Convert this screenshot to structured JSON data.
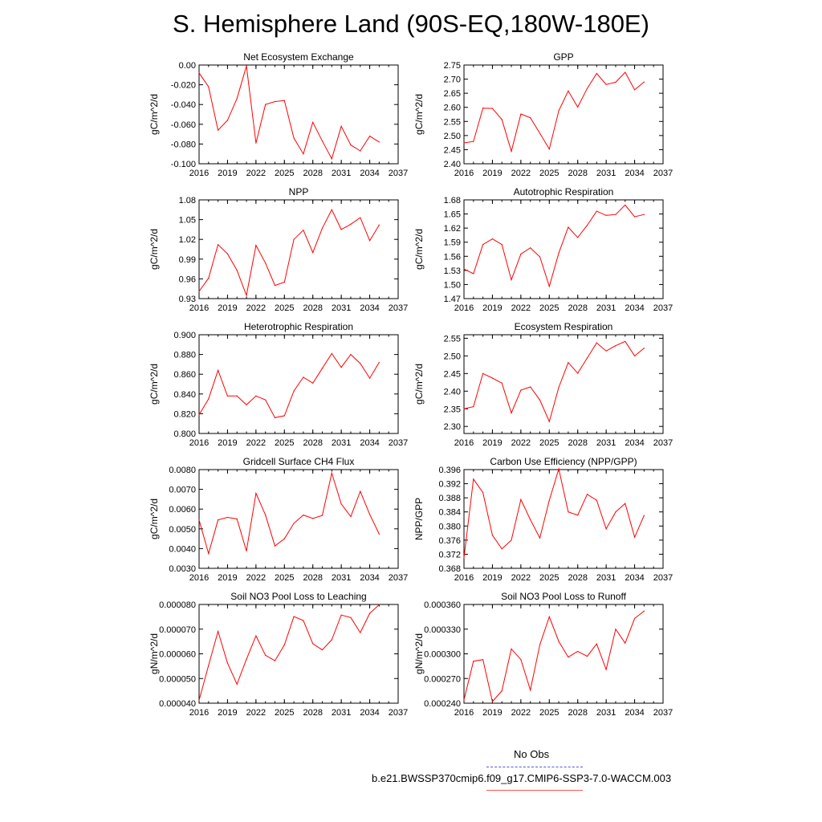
{
  "title": "S. Hemisphere Land (90S-EQ,180W-180E)",
  "colors": {
    "series": "#ff0000",
    "obs": "#5555dd",
    "model_legend": "#ff5555"
  },
  "legend": {
    "obs_label": "No Obs",
    "model_label": "b.e21.BWSSP370cmip6.f09_g17.CMIP6-SSP3-7.0-WACCM.003"
  },
  "chart_data": [
    {
      "type": "line",
      "title": "Net Ecosystem Exchange",
      "ylabel": "gC/m^2/d",
      "xlim": [
        2016,
        2037
      ],
      "xticks": [
        "2016",
        "2019",
        "2022",
        "2025",
        "2028",
        "2031",
        "2034",
        "2037"
      ],
      "ylim": [
        -0.1,
        0.0
      ],
      "yticks": [
        "-0.100",
        "-0.080",
        "-0.060",
        "-0.040",
        "-0.020",
        "0.00"
      ],
      "ytick_labels": [
        "-0.100",
        "-0.080",
        "-0.060",
        "-0.040",
        "-0.020",
        "0.00"
      ],
      "x": [
        2016,
        2017,
        2018,
        2019,
        2020,
        2021,
        2022,
        2023,
        2024,
        2025,
        2026,
        2027,
        2028,
        2029,
        2030,
        2031,
        2032,
        2033,
        2034,
        2035
      ],
      "values": [
        -0.008,
        -0.022,
        -0.066,
        -0.056,
        -0.034,
        -0.001,
        -0.079,
        -0.04,
        -0.037,
        -0.036,
        -0.074,
        -0.09,
        -0.058,
        -0.077,
        -0.095,
        -0.062,
        -0.081,
        -0.087,
        -0.072,
        -0.078
      ]
    },
    {
      "type": "line",
      "title": "GPP",
      "ylabel": "gC/m^2/d",
      "xlim": [
        2016,
        2037
      ],
      "xticks": [
        "2016",
        "2019",
        "2022",
        "2025",
        "2028",
        "2031",
        "2034",
        "2037"
      ],
      "ylim": [
        2.4,
        2.75
      ],
      "yticks": [
        "2.40",
        "2.45",
        "2.50",
        "2.55",
        "2.60",
        "2.65",
        "2.70",
        "2.75"
      ],
      "ytick_labels": [
        "2.40",
        "2.45",
        "2.50",
        "2.55",
        "2.60",
        "2.65",
        "2.70",
        "2.75"
      ],
      "x": [
        2016,
        2017,
        2018,
        2019,
        2020,
        2021,
        2022,
        2023,
        2024,
        2025,
        2026,
        2027,
        2028,
        2029,
        2030,
        2031,
        2032,
        2033,
        2034,
        2035
      ],
      "values": [
        2.474,
        2.479,
        2.597,
        2.596,
        2.557,
        2.444,
        2.576,
        2.563,
        2.508,
        2.452,
        2.588,
        2.658,
        2.601,
        2.667,
        2.72,
        2.681,
        2.689,
        2.724,
        2.662,
        2.69
      ]
    },
    {
      "type": "line",
      "title": "NPP",
      "ylabel": "gC/m^2/d",
      "xlim": [
        2016,
        2037
      ],
      "xticks": [
        "2016",
        "2019",
        "2022",
        "2025",
        "2028",
        "2031",
        "2034",
        "2037"
      ],
      "ylim": [
        0.93,
        1.08
      ],
      "yticks": [
        "0.93",
        "0.96",
        "0.99",
        "1.02",
        "1.05",
        "1.08"
      ],
      "ytick_labels": [
        "0.93",
        "0.96",
        "0.99",
        "1.02",
        "1.05",
        "1.08"
      ],
      "x": [
        2016,
        2017,
        2018,
        2019,
        2020,
        2021,
        2022,
        2023,
        2024,
        2025,
        2026,
        2027,
        2028,
        2029,
        2030,
        2031,
        2032,
        2033,
        2034,
        2035
      ],
      "values": [
        0.941,
        0.961,
        1.012,
        0.998,
        0.973,
        0.935,
        1.011,
        0.984,
        0.95,
        0.955,
        1.02,
        1.034,
        1.0,
        1.037,
        1.065,
        1.035,
        1.043,
        1.053,
        1.018,
        1.042
      ]
    },
    {
      "type": "line",
      "title": "Autotrophic Respiration",
      "ylabel": "gC/m^2/d",
      "xlim": [
        2016,
        2037
      ],
      "xticks": [
        "2016",
        "2019",
        "2022",
        "2025",
        "2028",
        "2031",
        "2034",
        "2037"
      ],
      "ylim": [
        1.47,
        1.68
      ],
      "yticks": [
        "1.47",
        "1.50",
        "1.53",
        "1.56",
        "1.59",
        "1.62",
        "1.65",
        "1.68"
      ],
      "ytick_labels": [
        "1.47",
        "1.50",
        "1.53",
        "1.56",
        "1.59",
        "1.62",
        "1.65",
        "1.68"
      ],
      "x": [
        2016,
        2017,
        2018,
        2019,
        2020,
        2021,
        2022,
        2023,
        2024,
        2025,
        2026,
        2027,
        2028,
        2029,
        2030,
        2031,
        2032,
        2033,
        2034,
        2035
      ],
      "values": [
        1.533,
        1.523,
        1.585,
        1.597,
        1.585,
        1.51,
        1.565,
        1.578,
        1.559,
        1.496,
        1.567,
        1.622,
        1.6,
        1.626,
        1.656,
        1.647,
        1.649,
        1.669,
        1.644,
        1.649
      ]
    },
    {
      "type": "line",
      "title": "Heterotrophic Respiration",
      "ylabel": "gC/m^2/d",
      "xlim": [
        2016,
        2037
      ],
      "xticks": [
        "2016",
        "2019",
        "2022",
        "2025",
        "2028",
        "2031",
        "2034",
        "2037"
      ],
      "ylim": [
        0.8,
        0.9
      ],
      "yticks": [
        "0.800",
        "0.820",
        "0.840",
        "0.860",
        "0.880",
        "0.900"
      ],
      "ytick_labels": [
        "0.800",
        "0.820",
        "0.840",
        "0.860",
        "0.880",
        "0.900"
      ],
      "x": [
        2016,
        2017,
        2018,
        2019,
        2020,
        2021,
        2022,
        2023,
        2024,
        2025,
        2026,
        2027,
        2028,
        2029,
        2030,
        2031,
        2032,
        2033,
        2034,
        2035
      ],
      "values": [
        0.819,
        0.835,
        0.864,
        0.838,
        0.838,
        0.829,
        0.838,
        0.834,
        0.816,
        0.818,
        0.843,
        0.857,
        0.851,
        0.866,
        0.881,
        0.867,
        0.88,
        0.871,
        0.856,
        0.872
      ]
    },
    {
      "type": "line",
      "title": "Ecosystem Respiration",
      "ylabel": "gC/m^2/d",
      "xlim": [
        2016,
        2037
      ],
      "xticks": [
        "2016",
        "2019",
        "2022",
        "2025",
        "2028",
        "2031",
        "2034",
        "2037"
      ],
      "ylim": [
        2.28,
        2.56
      ],
      "yticks": [
        "2.30",
        "2.35",
        "2.40",
        "2.45",
        "2.50",
        "2.55"
      ],
      "ytick_labels": [
        "2.30",
        "2.35",
        "2.40",
        "2.45",
        "2.50",
        "2.55"
      ],
      "x": [
        2016,
        2017,
        2018,
        2019,
        2020,
        2021,
        2022,
        2023,
        2024,
        2025,
        2026,
        2027,
        2028,
        2029,
        2030,
        2031,
        2032,
        2033,
        2034,
        2035
      ],
      "values": [
        2.35,
        2.356,
        2.45,
        2.437,
        2.423,
        2.338,
        2.403,
        2.412,
        2.375,
        2.314,
        2.411,
        2.481,
        2.451,
        2.494,
        2.537,
        2.514,
        2.529,
        2.541,
        2.5,
        2.522
      ]
    },
    {
      "type": "line",
      "title": "Gridcell Surface CH4 Flux",
      "ylabel": "gC/m^2/d",
      "xlim": [
        2016,
        2037
      ],
      "xticks": [
        "2016",
        "2019",
        "2022",
        "2025",
        "2028",
        "2031",
        "2034",
        "2037"
      ],
      "ylim": [
        0.003,
        0.008
      ],
      "yticks": [
        "0.0030",
        "0.0040",
        "0.0050",
        "0.0060",
        "0.0070",
        "0.0080"
      ],
      "ytick_labels": [
        "0.0030",
        "0.0040",
        "0.0050",
        "0.0060",
        "0.0070",
        "0.0080"
      ],
      "x": [
        2016,
        2017,
        2018,
        2019,
        2020,
        2021,
        2022,
        2023,
        2024,
        2025,
        2026,
        2027,
        2028,
        2029,
        2030,
        2031,
        2032,
        2033,
        2034,
        2035
      ],
      "values": [
        0.00545,
        0.00375,
        0.00545,
        0.00558,
        0.0055,
        0.00388,
        0.0068,
        0.0057,
        0.00413,
        0.0045,
        0.00528,
        0.0057,
        0.00553,
        0.00568,
        0.00782,
        0.00626,
        0.00562,
        0.0069,
        0.00573,
        0.00473
      ]
    },
    {
      "type": "line",
      "title": "Carbon Use Efficiency (NPP/GPP)",
      "ylabel": "NPP/GPP",
      "xlim": [
        2016,
        2037
      ],
      "xticks": [
        "2016",
        "2019",
        "2022",
        "2025",
        "2028",
        "2031",
        "2034",
        "2037"
      ],
      "ylim": [
        0.368,
        0.396
      ],
      "yticks": [
        "0.368",
        "0.372",
        "0.376",
        "0.380",
        "0.384",
        "0.388",
        "0.392",
        "0.396"
      ],
      "ytick_labels": [
        "0.368",
        "0.372",
        "0.376",
        "0.380",
        "0.384",
        "0.388",
        "0.392",
        "0.396"
      ],
      "x": [
        2016,
        2017,
        2018,
        2019,
        2020,
        2021,
        2022,
        2023,
        2024,
        2025,
        2026,
        2027,
        2028,
        2029,
        2030,
        2031,
        2032,
        2033,
        2034,
        2035
      ],
      "values": [
        0.371,
        0.3933,
        0.3895,
        0.3774,
        0.3735,
        0.376,
        0.3875,
        0.3818,
        0.3766,
        0.3873,
        0.3962,
        0.384,
        0.3831,
        0.389,
        0.3873,
        0.3792,
        0.384,
        0.3864,
        0.3768,
        0.383
      ]
    },
    {
      "type": "line",
      "title": "Soil NO3 Pool Loss to Leaching",
      "ylabel": "gN/m^2/d",
      "xlim": [
        2016,
        2037
      ],
      "xticks": [
        "2016",
        "2019",
        "2022",
        "2025",
        "2028",
        "2031",
        "2034",
        "2037"
      ],
      "ylim": [
        4e-05,
        8e-05
      ],
      "yticks": [
        "0.000040",
        "0.000050",
        "0.000060",
        "0.000070",
        "0.000080"
      ],
      "ytick_labels": [
        "0.000040",
        "0.000050",
        "0.000060",
        "0.000070",
        "0.000080"
      ],
      "x": [
        2016,
        2017,
        2018,
        2019,
        2020,
        2021,
        2022,
        2023,
        2024,
        2025,
        2026,
        2027,
        2028,
        2029,
        2030,
        2031,
        2032,
        2033,
        2034,
        2035
      ],
      "values": [
        4.12e-05,
        5.53e-05,
        6.91e-05,
        5.63e-05,
        4.77e-05,
        5.78e-05,
        6.73e-05,
        5.94e-05,
        5.72e-05,
        6.36e-05,
        7.51e-05,
        7.35e-05,
        6.41e-05,
        6.16e-05,
        6.57e-05,
        7.57e-05,
        7.47e-05,
        6.86e-05,
        7.64e-05,
        7.99e-05
      ]
    },
    {
      "type": "line",
      "title": "Soil NO3 Pool Loss to Runoff",
      "ylabel": "gN/m^2/d",
      "xlim": [
        2016,
        2037
      ],
      "xticks": [
        "2016",
        "2019",
        "2022",
        "2025",
        "2028",
        "2031",
        "2034",
        "2037"
      ],
      "ylim": [
        0.00024,
        0.00036
      ],
      "yticks": [
        "0.000240",
        "0.000270",
        "0.000300",
        "0.000330",
        "0.000360"
      ],
      "ytick_labels": [
        "0.000240",
        "0.000270",
        "0.000300",
        "0.000330",
        "0.000360"
      ],
      "x": [
        2016,
        2017,
        2018,
        2019,
        2020,
        2021,
        2022,
        2023,
        2024,
        2025,
        2026,
        2027,
        2028,
        2029,
        2030,
        2031,
        2032,
        2033,
        2034,
        2035
      ],
      "values": [
        0.000244,
        0.000291,
        0.000293,
        0.000242,
        0.000255,
        0.000306,
        0.000293,
        0.000256,
        0.000311,
        0.000345,
        0.000315,
        0.000296,
        0.000303,
        0.000297,
        0.000312,
        0.000281,
        0.00033,
        0.000313,
        0.000343,
        0.000352
      ]
    }
  ]
}
